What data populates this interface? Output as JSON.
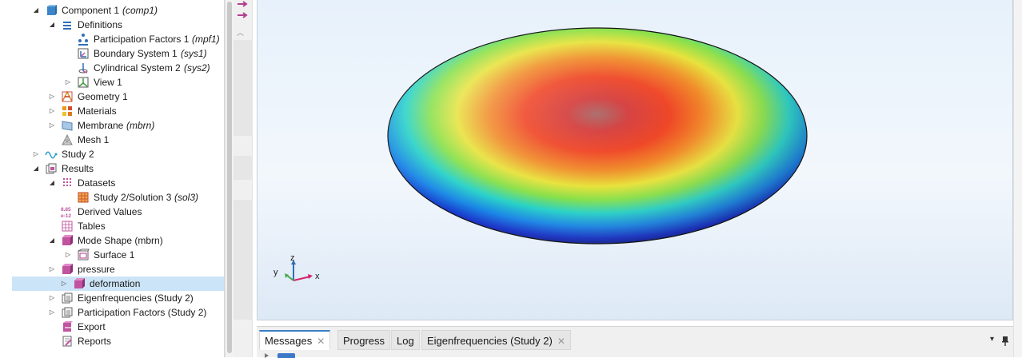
{
  "tree": {
    "items": [
      {
        "label": "Component 1",
        "tag": "(comp1)",
        "icon": "component-icon",
        "toggle": "expanded"
      },
      {
        "label": "Definitions",
        "tag": "",
        "icon": "definitions-icon",
        "toggle": "expanded"
      },
      {
        "label": "Participation Factors 1",
        "tag": "(mpf1)",
        "icon": "participation-factors-icon",
        "toggle": "none"
      },
      {
        "label": "Boundary System 1",
        "tag": "(sys1)",
        "icon": "boundary-system-icon",
        "toggle": "none"
      },
      {
        "label": "Cylindrical System 2",
        "tag": "(sys2)",
        "icon": "cylindrical-system-icon",
        "toggle": "none"
      },
      {
        "label": "View 1",
        "tag": "",
        "icon": "view-icon",
        "toggle": "collapsed"
      },
      {
        "label": "Geometry 1",
        "tag": "",
        "icon": "geometry-icon",
        "toggle": "collapsed"
      },
      {
        "label": "Materials",
        "tag": "",
        "icon": "materials-icon",
        "toggle": "collapsed"
      },
      {
        "label": "Membrane",
        "tag": "(mbrn)",
        "icon": "membrane-icon",
        "toggle": "collapsed"
      },
      {
        "label": "Mesh 1",
        "tag": "",
        "icon": "mesh-icon",
        "toggle": "none"
      },
      {
        "label": "Study 2",
        "tag": "",
        "icon": "study-icon",
        "toggle": "collapsed"
      },
      {
        "label": "Results",
        "tag": "",
        "icon": "results-icon",
        "toggle": "expanded"
      },
      {
        "label": "Datasets",
        "tag": "",
        "icon": "datasets-icon",
        "toggle": "expanded"
      },
      {
        "label": "Study 2/Solution 3",
        "tag": "(sol3)",
        "icon": "solution-icon",
        "toggle": "none"
      },
      {
        "label": "Derived Values",
        "tag": "",
        "icon": "derived-values-icon",
        "toggle": "none",
        "icon_text": [
          "8.85",
          "e-12"
        ]
      },
      {
        "label": "Tables",
        "tag": "",
        "icon": "tables-icon",
        "toggle": "none"
      },
      {
        "label": "Mode Shape (mbrn)",
        "tag": "",
        "icon": "plot-group-icon",
        "toggle": "expanded"
      },
      {
        "label": "Surface 1",
        "tag": "",
        "icon": "surface-icon",
        "toggle": "collapsed"
      },
      {
        "label": "pressure",
        "tag": "",
        "icon": "plot-group-icon",
        "toggle": "collapsed"
      },
      {
        "label": "deformation",
        "tag": "",
        "icon": "plot-group-icon",
        "toggle": "collapsed",
        "selected": true
      },
      {
        "label": "Eigenfrequencies (Study 2)",
        "tag": "",
        "icon": "evaluation-group-icon",
        "toggle": "collapsed"
      },
      {
        "label": "Participation Factors (Study 2)",
        "tag": "",
        "icon": "evaluation-group-icon",
        "toggle": "collapsed"
      },
      {
        "label": "Export",
        "tag": "",
        "icon": "export-icon",
        "toggle": "none"
      },
      {
        "label": "Reports",
        "tag": "",
        "icon": "reports-icon",
        "toggle": "none"
      }
    ]
  },
  "graphics": {
    "axes": {
      "x": "x",
      "y": "y",
      "z": "z"
    },
    "colors": {
      "x_axis": "#d6246c",
      "y_axis": "#4aa84a",
      "z_axis": "#2f6fb7"
    }
  },
  "bottom_tabs": {
    "tabs": [
      {
        "label": "Messages",
        "active": true,
        "closable": true
      },
      {
        "label": "Progress",
        "active": false,
        "closable": false
      },
      {
        "label": "Log",
        "active": false,
        "closable": false
      },
      {
        "label": "Eigenfrequencies (Study 2)",
        "active": false,
        "closable": true
      }
    ],
    "close_glyph": "✕",
    "menu_glyph": "▾",
    "pin_glyph": "📌"
  },
  "colors": {
    "selection": "#cce4f7",
    "accent": "#3b7fc4",
    "plot_group": "#c0549f"
  }
}
